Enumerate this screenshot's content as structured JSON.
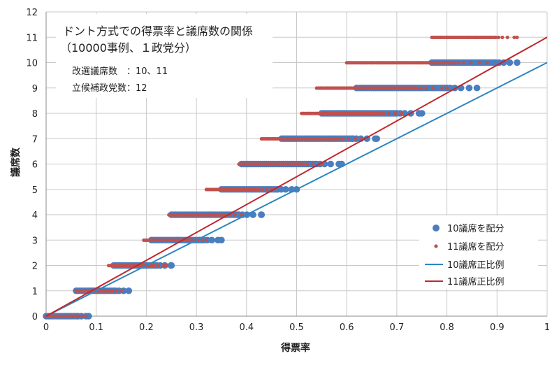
{
  "chart_data": {
    "type": "scatter",
    "title_lines": [
      "ドント方式での得票率と議席数の関係",
      "（10000事例、１政党分）"
    ],
    "info_lines": [
      "改選議席数　：10、11",
      "立候補政党数：12"
    ],
    "xlabel": "得票率",
    "ylabel": "議席数",
    "xlim": [
      0,
      1
    ],
    "ylim": [
      0,
      12
    ],
    "x_ticks": [
      0,
      0.1,
      0.2,
      0.3,
      0.4,
      0.5,
      0.6,
      0.7,
      0.8,
      0.9,
      1
    ],
    "x_tick_labels": [
      "0",
      "0.1",
      "0.2",
      "0.3",
      "0.4",
      "0.5",
      "0.6",
      "0.7",
      "0.8",
      "0.9",
      "1"
    ],
    "y_ticks": [
      0,
      1,
      2,
      3,
      4,
      5,
      6,
      7,
      8,
      9,
      10,
      11,
      12
    ],
    "y_tick_labels": [
      "0",
      "1",
      "2",
      "3",
      "4",
      "5",
      "6",
      "7",
      "8",
      "9",
      "10",
      "11",
      "12"
    ],
    "grid": true,
    "legend_position": "bottom-right",
    "series": [
      {
        "name": "10議席を配分",
        "kind": "points",
        "color": "#4a7ebf",
        "segments": [
          {
            "y": 0,
            "x_min": 0.0,
            "x_max": 0.085
          },
          {
            "y": 1,
            "x_min": 0.06,
            "x_max": 0.165
          },
          {
            "y": 2,
            "x_min": 0.135,
            "x_max": 0.25
          },
          {
            "y": 3,
            "x_min": 0.21,
            "x_max": 0.35
          },
          {
            "y": 4,
            "x_min": 0.25,
            "x_max": 0.43
          },
          {
            "y": 5,
            "x_min": 0.35,
            "x_max": 0.5
          },
          {
            "y": 6,
            "x_min": 0.39,
            "x_max": 0.59
          },
          {
            "y": 7,
            "x_min": 0.47,
            "x_max": 0.66
          },
          {
            "y": 8,
            "x_min": 0.55,
            "x_max": 0.75
          },
          {
            "y": 9,
            "x_min": 0.62,
            "x_max": 0.86
          },
          {
            "y": 10,
            "x_min": 0.77,
            "x_max": 0.94
          }
        ]
      },
      {
        "name": "11議席を配分",
        "kind": "points",
        "color": "#c0504d",
        "segments": [
          {
            "y": 0,
            "x_min": 0.0,
            "x_max": 0.08
          },
          {
            "y": 1,
            "x_min": 0.06,
            "x_max": 0.15
          },
          {
            "y": 2,
            "x_min": 0.125,
            "x_max": 0.24
          },
          {
            "y": 3,
            "x_min": 0.195,
            "x_max": 0.32
          },
          {
            "y": 4,
            "x_min": 0.245,
            "x_max": 0.39
          },
          {
            "y": 5,
            "x_min": 0.32,
            "x_max": 0.45
          },
          {
            "y": 6,
            "x_min": 0.385,
            "x_max": 0.55
          },
          {
            "y": 7,
            "x_min": 0.43,
            "x_max": 0.63
          },
          {
            "y": 8,
            "x_min": 0.51,
            "x_max": 0.71
          },
          {
            "y": 9,
            "x_min": 0.54,
            "x_max": 0.8
          },
          {
            "y": 10,
            "x_min": 0.6,
            "x_max": 0.88
          },
          {
            "y": 11,
            "x_min": 0.77,
            "x_max": 0.94
          }
        ]
      },
      {
        "name": "10議席正比例",
        "kind": "line",
        "color": "#2e86c1",
        "x": [
          0,
          1
        ],
        "y": [
          0,
          10
        ]
      },
      {
        "name": "11議席正比例",
        "kind": "line",
        "color": "#c0272d",
        "x": [
          0,
          1
        ],
        "y": [
          0,
          11
        ]
      }
    ]
  }
}
